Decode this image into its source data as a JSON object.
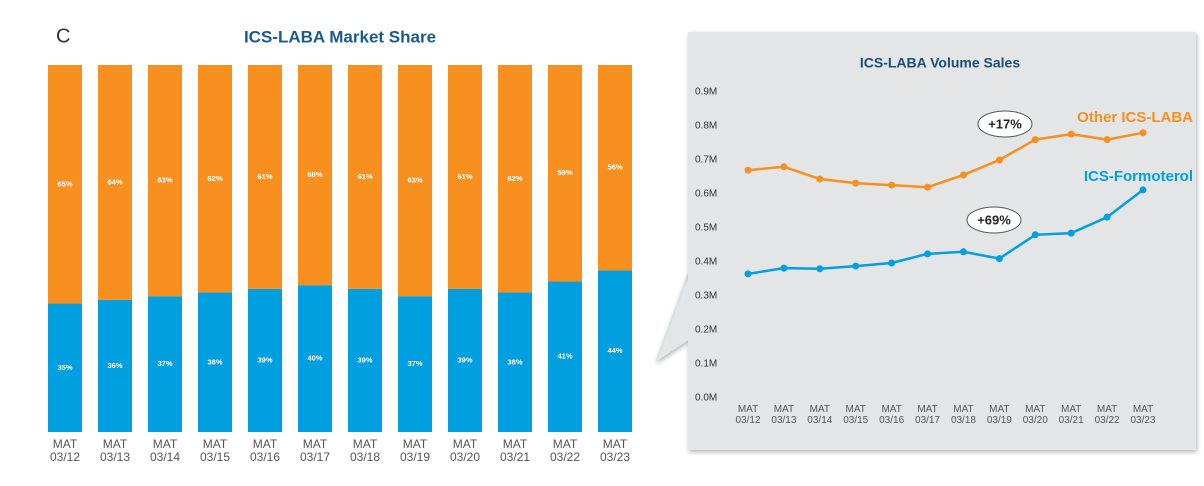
{
  "panel_label": "C",
  "chart_data": [
    {
      "type": "bar",
      "title": "ICS-LABA Market Share",
      "categories": [
        "MAT 03/12",
        "MAT 03/13",
        "MAT 03/14",
        "MAT 03/15",
        "MAT 03/16",
        "MAT 03/17",
        "MAT 03/18",
        "MAT 03/19",
        "MAT 03/20",
        "MAT 03/21",
        "MAT 03/22",
        "MAT 03/23"
      ],
      "stacked": true,
      "ylim": [
        0,
        100
      ],
      "series": [
        {
          "color": "#009fdf",
          "values": [
            35,
            36,
            37,
            38,
            39,
            40,
            39,
            37,
            39,
            38,
            41,
            44
          ],
          "value_labels": [
            "35%",
            "36%",
            "37%",
            "38%",
            "39%",
            "40%",
            "39%",
            "37%",
            "39%",
            "38%",
            "41%",
            "44%"
          ]
        },
        {
          "color": "#f7901e",
          "values": [
            65,
            64,
            63,
            62,
            61,
            60,
            61,
            63,
            61,
            62,
            59,
            56
          ],
          "value_labels": [
            "65%",
            "64%",
            "63%",
            "62%",
            "61%",
            "60%",
            "61%",
            "63%",
            "61%",
            "62%",
            "59%",
            "56%"
          ]
        }
      ]
    },
    {
      "type": "line",
      "title": "ICS-LABA Volume Sales",
      "categories": [
        "MAT 03/12",
        "MAT 03/13",
        "MAT 03/14",
        "MAT 03/15",
        "MAT 03/16",
        "MAT 03/17",
        "MAT 03/18",
        "MAT 03/19",
        "MAT 03/20",
        "MAT 03/21",
        "MAT 03/22",
        "MAT 03/23"
      ],
      "ylim": [
        0,
        0.9
      ],
      "yticks": [
        {
          "value": 0,
          "label": "0.0M"
        },
        {
          "value": 0.1,
          "label": "0.1M"
        },
        {
          "value": 0.2,
          "label": "0.2M"
        },
        {
          "value": 0.3,
          "label": "0.3M"
        },
        {
          "value": 0.4,
          "label": "0.4M"
        },
        {
          "value": 0.5,
          "label": "0.5M"
        },
        {
          "value": 0.6,
          "label": "0.6M"
        },
        {
          "value": 0.7,
          "label": "0.7M"
        },
        {
          "value": 0.8,
          "label": "0.8M"
        },
        {
          "value": 0.9,
          "label": "0.9M"
        }
      ],
      "series": [
        {
          "name": "Other ICS-LABA",
          "color": "#f7901e",
          "values": [
            0.67,
            0.68,
            0.644,
            0.632,
            0.626,
            0.62,
            0.656,
            0.7,
            0.76,
            0.776,
            0.76,
            0.78
          ]
        },
        {
          "name": "ICS-Formoterol",
          "color": "#009fdf",
          "values": [
            0.365,
            0.382,
            0.38,
            0.388,
            0.397,
            0.424,
            0.43,
            0.41,
            0.48,
            0.485,
            0.532,
            0.612
          ]
        }
      ],
      "annotations": [
        {
          "text": "+17%"
        },
        {
          "text": "+69%"
        }
      ]
    }
  ]
}
